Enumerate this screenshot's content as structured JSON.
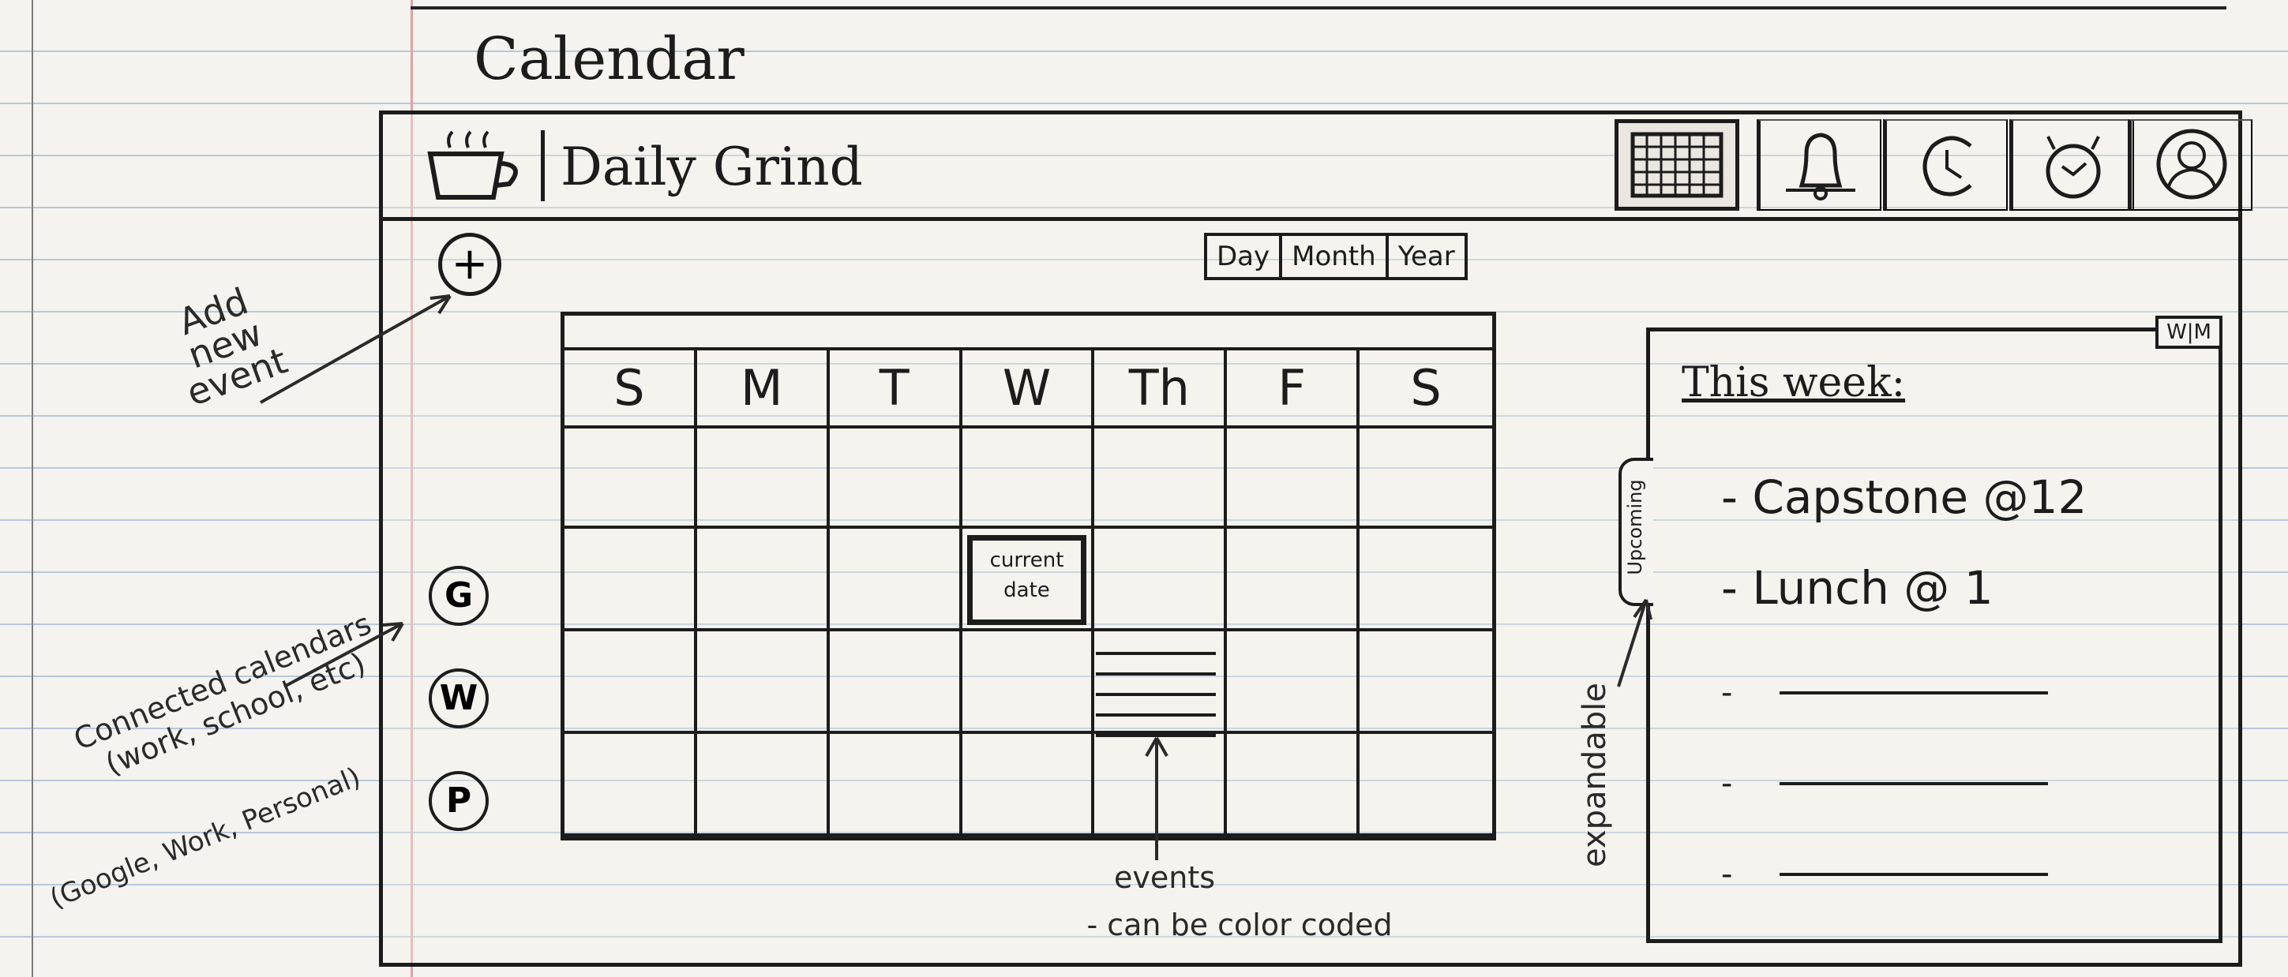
{
  "app": {
    "title": "Calendar",
    "name": "Daily Grind"
  },
  "header_icons": [
    {
      "name": "calendar-grid-icon",
      "active": true
    },
    {
      "name": "bell-icon"
    },
    {
      "name": "clock-icon"
    },
    {
      "name": "timer-icon"
    },
    {
      "name": "profile-icon"
    }
  ],
  "view_toggle": [
    "Day",
    "Month",
    "Year"
  ],
  "add_button": {
    "label": "+"
  },
  "connected_calendars": [
    {
      "letter": "G"
    },
    {
      "letter": "W"
    },
    {
      "letter": "P"
    }
  ],
  "calendar": {
    "days": [
      "S",
      "M",
      "T",
      "W",
      "Th",
      "F",
      "S"
    ],
    "today_label": "current date"
  },
  "week_panel": {
    "title": "This week:",
    "tab_label": "Upcoming",
    "toggle": "W|M",
    "events": [
      "- Capstone @12",
      "- Lunch @ 1"
    ]
  },
  "annotations": {
    "add_new_event": "Add new event",
    "connected": "Connected calendars (work, school, etc)",
    "connected_examples": "(Google, Work, Personal)",
    "expandable": "expandable",
    "events": "events",
    "color_coded": "- can be color coded"
  }
}
